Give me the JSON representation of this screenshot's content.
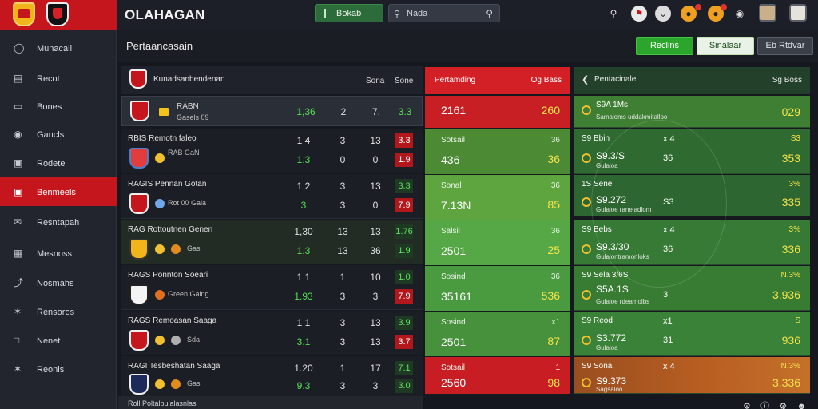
{
  "app": {
    "title": "OLAHAGAN"
  },
  "topbar": {
    "button_label": "Bokab",
    "search_label": "Nada",
    "notify_count_1": "",
    "notify_count_2": ""
  },
  "sidebar": {
    "items": [
      {
        "label": "Munacali",
        "icon": "gauge-icon"
      },
      {
        "label": "Recot",
        "icon": "document-icon"
      },
      {
        "label": "Bones",
        "icon": "monitor-icon"
      },
      {
        "label": "Gancls",
        "icon": "camera-icon"
      },
      {
        "label": "Rodete",
        "icon": "image-icon"
      },
      {
        "label": "Benmeels",
        "icon": "badge-icon"
      },
      {
        "label": "Resntapah",
        "icon": "mail-icon"
      },
      {
        "label": "Mesnoss",
        "icon": "calendar-icon"
      },
      {
        "label": "Nosmahs",
        "icon": "wrench-icon"
      },
      {
        "label": "Rensoros",
        "icon": "bird-icon"
      },
      {
        "label": "Nenet",
        "icon": "chat-icon"
      },
      {
        "label": "Reonls",
        "icon": "bird-icon"
      }
    ],
    "active_index": 5
  },
  "header": {
    "title": "Pertaancasain",
    "btn1": "Reclins",
    "btn2": "Sinalaar",
    "btn3": "Eb Rtdvar"
  },
  "table": {
    "head_label": "Kunadsanbendenan",
    "col1": "Sona",
    "col2": "Sone",
    "rows": [
      {
        "name1": "",
        "name2": "RABN",
        "sub": "Gasels 09",
        "c1": "1,36",
        "c2": "2",
        "c3": "7.",
        "c4": "3.3",
        "c4style": "g"
      },
      {
        "name1": "RBIS Remotn faleo",
        "name2": "",
        "sub": "RAB GaN",
        "c1": "1 4",
        "c1b": "1.3",
        "c2": "3",
        "c2b": "0",
        "c3": "13",
        "c3b": "0",
        "c4": "3.3",
        "c4b": "1.9"
      },
      {
        "name1": "RAGIS Pennan Gotan",
        "name2": "",
        "sub": "Rot 00 Gala",
        "c1": "1 2",
        "c1b": "3",
        "c2": "3",
        "c2b": "3",
        "c3": "13",
        "c3b": "0",
        "c4": "3.3",
        "c4b": "7.9"
      },
      {
        "name1": "RAG Rottoutnen Genen",
        "name2": "",
        "sub": "Gas",
        "c1": "1,30",
        "c1b": "1.3",
        "c2": "13",
        "c2b": "13",
        "c3": "13",
        "c3b": "36",
        "c4": "1.76",
        "c4b": "1.9"
      },
      {
        "name1": "RAGS Ponnton Soeari",
        "name2": "",
        "sub": "Green Gaing",
        "c1": "1 1",
        "c1b": "1.93",
        "c2": "1",
        "c2b": "3",
        "c3": "10",
        "c3b": "3",
        "c4": "1.0",
        "c4b": "7.9"
      },
      {
        "name1": "RAGS Remoasan Saaga",
        "name2": "",
        "sub": "Sda",
        "c1": "1 1",
        "c1b": "3.1",
        "c2": "3",
        "c2b": "3",
        "c3": "13",
        "c3b": "13",
        "c4": "3.9",
        "c4b": "3.7"
      },
      {
        "name1": "RAGI Tesbeshatan Saaga",
        "name2": "",
        "sub": "Gas",
        "c1": "1.20",
        "c1b": "9.3",
        "c2": "1",
        "c2b": "3",
        "c3": "17",
        "c3b": "3",
        "c4": "7.1",
        "c4b": "3.0"
      }
    ]
  },
  "middle": {
    "head_left": "Pertamding",
    "head_right": "Og Bass",
    "cells": [
      {
        "label": "",
        "value": "2161",
        "rt": "",
        "rv": "260",
        "style": "red"
      },
      {
        "label": "Sotsail",
        "value": "436",
        "rt": "36",
        "rv": "36",
        "style": "gr1"
      },
      {
        "label": "Sonal",
        "value": "7.13N",
        "rt": "36",
        "rv": "85",
        "style": "gr2"
      },
      {
        "label": "Salsil",
        "value": "2501",
        "rt": "36",
        "rv": "25",
        "style": "gr3"
      },
      {
        "label": "Sosind",
        "value": "35161",
        "rt": "36",
        "rv": "536",
        "style": "gr4"
      },
      {
        "label": "Sosind",
        "value": "2501",
        "rt": "x1",
        "rv": "87",
        "style": "gr5"
      },
      {
        "label": "Sotsail",
        "value": "2560",
        "rt": "1",
        "rv": "98",
        "style": "red2"
      }
    ]
  },
  "right": {
    "head_left": "Pentacinale",
    "head_right": "Sg Boss",
    "progress": 0.55,
    "cells": [
      {
        "a": "S9A 1Ms",
        "c": "Samaloms uddakmitalloo",
        "xm": "",
        "rt": "",
        "rv": "029",
        "style": "g1"
      },
      {
        "a": "S9 Bbin",
        "b": "S9.3/S",
        "c": "Gulaloa",
        "xm": "x 4",
        "xm2": "36",
        "rt": "S3",
        "rv": "353",
        "style": "g2"
      },
      {
        "a": "1S Sene",
        "b": "S9.272",
        "c": "Gulaloe raneladlom",
        "xm": "S3",
        "rt": "3%",
        "rv": "335",
        "style": "g3"
      },
      {
        "a": "S9 Bebs",
        "b": "S9.3/30",
        "c": "Gulalontramonloks",
        "xm": "x 4",
        "xm2": "36",
        "rt": "3%",
        "rv": "336",
        "style": "g4"
      },
      {
        "a": "S9 Sela 3/6S",
        "b": "S5A.1S",
        "c": "Gulaloe rdeamolbs",
        "xm": "3",
        "rt": "N.3%",
        "rv": "3.936",
        "style": "g5"
      },
      {
        "a": "S9 Reod",
        "b": "S3.772",
        "c": "Gulaloa",
        "xm": "x1",
        "xm2": "31",
        "rt": "S",
        "rv": "936",
        "style": "g6"
      },
      {
        "a": "S9 Sona",
        "b": "S9.373",
        "c": "Sagsaloo",
        "xm": "x 4",
        "xm2": "",
        "rt": "N.3%",
        "rv": "3,336",
        "style": "or"
      }
    ]
  },
  "bottom": {
    "text": "Roll Poltalbulalasnlas"
  }
}
